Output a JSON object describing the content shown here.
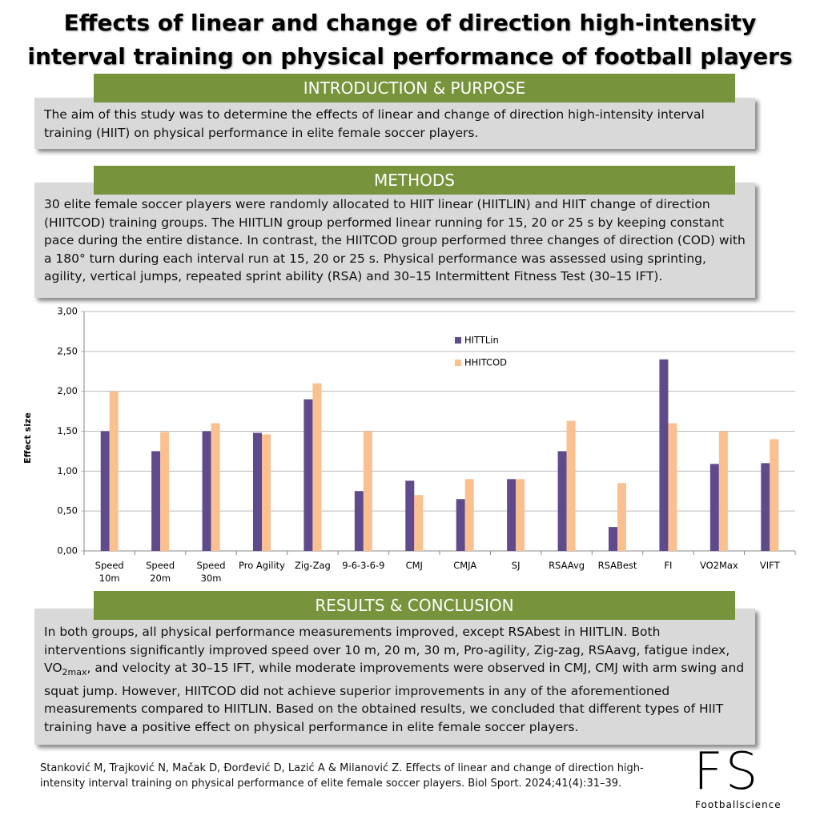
{
  "header": {
    "title": "Effects of linear and change of direction high-intensity interval training on physical performance of football players"
  },
  "intro": {
    "heading": "INTRODUCTION & PURPOSE",
    "text": "The aim of this study was to determine the effects of linear and change of direction high-intensity interval training (HIIT) on physical performance in elite female soccer players."
  },
  "methods": {
    "heading": "METHODS",
    "text": "30 elite female soccer players  were randomly allocated to HIIT linear (HIITLIN) and HIIT change of direction (HIITCOD) training groups. The HIITLIN group performed linear running for 15, 20 or 25 s by keeping constant pace during the entire distance. In contrast, the HIITCOD group performed three changes of direction (COD) with a 180° turn during each interval run at 15, 20 or 25 s. Physical performance was assessed using sprinting, agility, vertical jumps, repeated sprint ability (RSA) and 30–15 Intermittent Fitness Test (30–15 IFT)."
  },
  "chart_data": {
    "type": "bar",
    "y_label": "Effect size",
    "categories": [
      "Speed\n10m",
      "Speed\n20m",
      "Speed\n30m",
      "Pro Agility",
      "Zig-Zag",
      "9-6-3-6-9",
      "CMJ",
      "CMJA",
      "SJ",
      "RSAAvg",
      "RSABest",
      "FI",
      "VO2Max",
      "VIFT"
    ],
    "series": [
      {
        "name": "HITTLin",
        "color": "#5f4a8b",
        "values": [
          1.5,
          1.25,
          1.5,
          1.48,
          1.9,
          0.75,
          0.88,
          0.65,
          0.9,
          1.25,
          0.3,
          2.4,
          1.09,
          1.1
        ]
      },
      {
        "name": "HHITCOD",
        "color": "#fac090",
        "values": [
          2.0,
          1.49,
          1.6,
          1.46,
          2.1,
          1.5,
          0.7,
          0.9,
          0.9,
          1.63,
          0.85,
          1.6,
          1.5,
          1.4
        ]
      }
    ],
    "ylim": [
      0,
      3
    ],
    "yticks": [
      {
        "value": 0,
        "label": "0,00"
      },
      {
        "value": 0.5,
        "label": "0,50"
      },
      {
        "value": 1,
        "label": "1,00"
      },
      {
        "value": 1.5,
        "label": "1,50"
      },
      {
        "value": 2,
        "label": "2,00"
      },
      {
        "value": 2.5,
        "label": "2,50"
      },
      {
        "value": 3,
        "label": "3,00"
      }
    ],
    "grid": true,
    "legend": "top-center"
  },
  "results": {
    "heading": "RESULTS & CONCLUSION",
    "text_before": "In both groups, all physical performance measurements improved, except RSAbest in HIITLIN. Both interventions significantly improved speed over 10 m, 20 m, 30 m, Pro-agility, Zig-zag, RSAavg, fatigue index, VO",
    "text_sub": "2max",
    "text_after": ", and velocity at 30–15 IFT, while moderate improvements were observed in CMJ, CMJ with arm swing and squat jump. However, HIITCOD did not achieve superior improvements in any of the aforementioned measurements compared to HIITLIN. Based on the obtained results, we concluded that different types of HIIT training have a positive effect on physical performance in elite female soccer players."
  },
  "citation": "Stanković M, Trajković N, Mačak D, Đorđević D, Lazić A & Milanović Z. Effects of linear and change of direction high-intensity interval training on physical performance of elite female soccer players. Biol Sport. 2024;41(4):31–39.",
  "logo": {
    "mark": "FS",
    "name": "Footballscience"
  }
}
